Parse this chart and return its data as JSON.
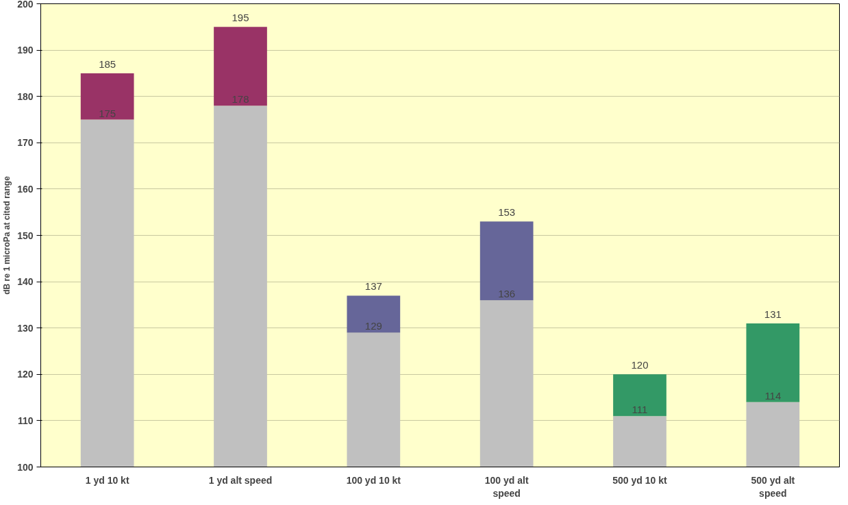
{
  "chart_data": {
    "type": "bar",
    "stacked": true,
    "ylabel": "dB re 1 microPa at cited range",
    "categories": [
      "1 yd 10 kt",
      "1 yd alt speed",
      "100 yd 10 kt",
      "100 yd alt speed",
      "500 yd 10 kt",
      "500 yd alt speed"
    ],
    "series": [
      {
        "color": "#c0c0c0",
        "values": [
          175,
          178,
          129,
          136,
          111,
          114
        ],
        "value_labels": [
          "175",
          "178",
          "129",
          "136",
          "111",
          "114"
        ]
      },
      {
        "colors": [
          "#993366",
          "#993366",
          "#666699",
          "#666699",
          "#339966",
          "#339966"
        ],
        "base": [
          175,
          178,
          129,
          136,
          111,
          114
        ],
        "values": [
          10,
          17,
          8,
          17,
          9,
          17
        ]
      }
    ],
    "totals": [
      "185",
      "195",
      "137",
      "153",
      "120",
      "131"
    ],
    "ylim": [
      100,
      200
    ],
    "yticks": [
      100,
      110,
      120,
      130,
      140,
      150,
      160,
      170,
      180,
      190,
      200
    ],
    "grid": "y"
  }
}
